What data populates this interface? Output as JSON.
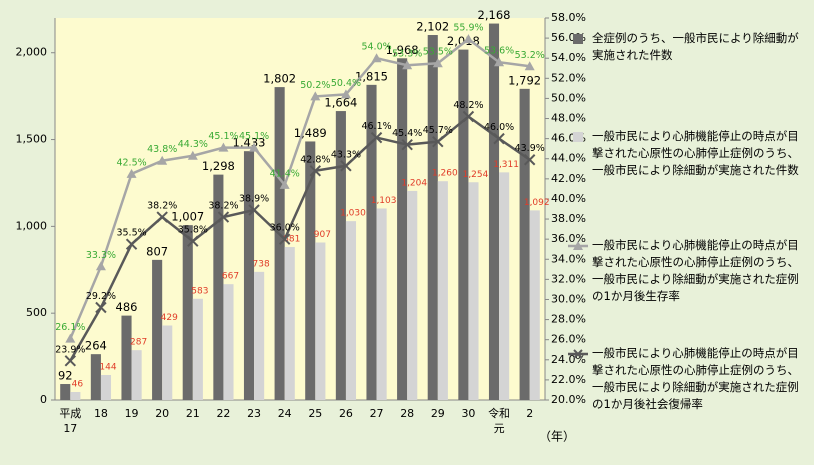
{
  "chart_data": {
    "type": "bar-line",
    "categories": [
      "平成\n17",
      "18",
      "19",
      "20",
      "21",
      "22",
      "23",
      "24",
      "25",
      "26",
      "27",
      "28",
      "29",
      "30",
      "令和\n元",
      "2"
    ],
    "x_label": "（年）",
    "ylim": [
      0,
      2200
    ],
    "yticks": [
      0,
      500,
      {
        "value": 1000,
        "label": "1,000"
      },
      {
        "value": 1500,
        "label": "1,500"
      },
      {
        "value": 2000,
        "label": "2,000"
      }
    ],
    "y2lim": [
      20,
      58
    ],
    "y2ticks": [
      {
        "value": 20,
        "label": "20.0%"
      },
      {
        "value": 22,
        "label": "22.0%"
      },
      {
        "value": 24,
        "label": "24.0%"
      },
      {
        "value": 26,
        "label": "26.0%"
      },
      {
        "value": 28,
        "label": "28.0%"
      },
      {
        "value": 30,
        "label": "30.0%"
      },
      {
        "value": 32,
        "label": "32.0%"
      },
      {
        "value": 34,
        "label": "34.0%"
      },
      {
        "value": 36,
        "label": "36.0%"
      },
      {
        "value": 38,
        "label": "38.0%"
      },
      {
        "value": 40,
        "label": "40.0%"
      },
      {
        "value": 42,
        "label": "42.0%"
      },
      {
        "value": 44,
        "label": "44.0%"
      },
      {
        "value": 46,
        "label": "46.0%"
      },
      {
        "value": 48,
        "label": "48.0%"
      },
      {
        "value": 50,
        "label": "50.0%"
      },
      {
        "value": 52,
        "label": "52.0%"
      },
      {
        "value": 54,
        "label": "54.0%"
      },
      {
        "value": 56,
        "label": "56.0%"
      },
      {
        "value": 58,
        "label": "58.0%"
      }
    ],
    "series": [
      {
        "name": "全症例のうち、一般市民により除細動が実施された件数",
        "type": "bar",
        "color": "#6b6b6b",
        "label_color": "#000000",
        "values": [
          92,
          264,
          486,
          807,
          1007,
          1298,
          1433,
          1802,
          1489,
          1664,
          1815,
          1968,
          2102,
          2018,
          2168,
          1792
        ],
        "value_labels": [
          "92",
          "264",
          "486",
          "807",
          "1,007",
          "1,298",
          "1,433",
          "1,802",
          "1,489",
          "1,664",
          "1,815",
          "1,968",
          "2,102",
          "2,018",
          "2,168",
          "1,792"
        ]
      },
      {
        "name": "一般市民により心肺機能停止の時点が目撃された心原性の心肺停止症例のうち、一般市民により除細動が実施された件数",
        "type": "bar",
        "color": "#d4d4d4",
        "label_color": "#e03c28",
        "values": [
          46,
          144,
          287,
          429,
          583,
          667,
          738,
          881,
          907,
          1030,
          1103,
          1204,
          1260,
          1254,
          1311,
          1092
        ],
        "value_labels": [
          "46",
          "144",
          "287",
          "429",
          "583",
          "667",
          "738",
          "881",
          "907",
          "1,030",
          "1,103",
          "1,204",
          "1,260",
          "1,254",
          "1,311",
          "1,092"
        ]
      },
      {
        "name": "一般市民により心肺機能停止の時点が目撃された心原性の心肺停止症例のうち、一般市民により除細動が実施された症例の1か月後生存率",
        "type": "line",
        "axis": "y2",
        "marker": "triangle",
        "color": "#a6a6a6",
        "label_color": "#3aaa35",
        "values": [
          26.1,
          33.3,
          42.5,
          43.8,
          44.3,
          45.1,
          45.1,
          41.4,
          50.2,
          50.4,
          54.0,
          53.3,
          53.5,
          55.9,
          53.6,
          53.2
        ],
        "value_labels": [
          "26.1%",
          "33.3%",
          "42.5%",
          "43.8%",
          "44.3%",
          "45.1%",
          "45.1%",
          "41.4%",
          "50.2%",
          "50.4%",
          "54.0%",
          "53.3%",
          "53.5%",
          "55.9%",
          "53.6%",
          "53.2%"
        ]
      },
      {
        "name": "一般市民により心肺機能停止の時点が目撃された心原性の心肺停止症例のうち、一般市民により除細動が実施された症例の1か月後社会復帰率",
        "type": "line",
        "axis": "y2",
        "marker": "cross",
        "color": "#595959",
        "label_color": "#000000",
        "values": [
          23.9,
          29.2,
          35.5,
          38.2,
          35.8,
          38.2,
          38.9,
          36.0,
          42.8,
          43.3,
          46.1,
          45.4,
          45.7,
          48.2,
          46.0,
          43.9
        ],
        "value_labels": [
          "23.9%",
          "29.2%",
          "35.5%",
          "38.2%",
          "35.8%",
          "38.2%",
          "38.9%",
          "36.0%",
          "42.8%",
          "43.3%",
          "46.1%",
          "45.4%",
          "45.7%",
          "48.2%",
          "46.0%",
          "43.9%"
        ]
      }
    ]
  }
}
